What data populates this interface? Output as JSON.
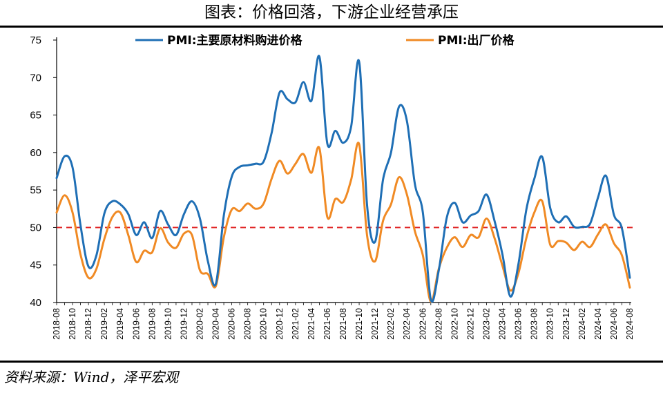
{
  "title": "图表：价格回落，下游企业经营承压",
  "source": "资料来源：Wind，泽平宏观",
  "chart_data": {
    "type": "line",
    "ylim": [
      40,
      75
    ],
    "yticks": [
      40,
      45,
      50,
      55,
      60,
      65,
      70,
      75
    ],
    "grid": false,
    "legend_position": "top",
    "reference_line": {
      "y": 50,
      "color": "#E02020",
      "style": "dashed"
    },
    "x_tick_labels": [
      "2018-08",
      "2018-10",
      "2018-12",
      "2019-02",
      "2019-04",
      "2019-06",
      "2019-08",
      "2019-10",
      "2019-12",
      "2020-02",
      "2020-04",
      "2020-06",
      "2020-08",
      "2020-10",
      "2020-12",
      "2021-02",
      "2021-04",
      "2021-06",
      "2021-08",
      "2021-10",
      "2021-12",
      "2022-02",
      "2022-04",
      "2022-06",
      "2022-08",
      "2022-10",
      "2022-12",
      "2023-02",
      "2023-04",
      "2023-06",
      "2023-08",
      "2023-10",
      "2023-12",
      "2024-02",
      "2024-04",
      "2024-06",
      "2024-08"
    ],
    "x": [
      "2018-08",
      "2018-09",
      "2018-10",
      "2018-11",
      "2018-12",
      "2019-01",
      "2019-02",
      "2019-03",
      "2019-04",
      "2019-05",
      "2019-06",
      "2019-07",
      "2019-08",
      "2019-09",
      "2019-10",
      "2019-11",
      "2019-12",
      "2020-01",
      "2020-02",
      "2020-03",
      "2020-04",
      "2020-05",
      "2020-06",
      "2020-07",
      "2020-08",
      "2020-09",
      "2020-10",
      "2020-11",
      "2020-12",
      "2021-01",
      "2021-02",
      "2021-03",
      "2021-04",
      "2021-05",
      "2021-06",
      "2021-07",
      "2021-08",
      "2021-09",
      "2021-10",
      "2021-11",
      "2021-12",
      "2022-01",
      "2022-02",
      "2022-03",
      "2022-04",
      "2022-05",
      "2022-06",
      "2022-07",
      "2022-08",
      "2022-09",
      "2022-10",
      "2022-11",
      "2022-12",
      "2023-01",
      "2023-02",
      "2023-03",
      "2023-04",
      "2023-05",
      "2023-06",
      "2023-07",
      "2023-08",
      "2023-09",
      "2023-10",
      "2023-11",
      "2023-12",
      "2024-01",
      "2024-02",
      "2024-03",
      "2024-04",
      "2024-05",
      "2024-06",
      "2024-07",
      "2024-08"
    ],
    "series": [
      {
        "name": "PMI:主要原材料购进价格",
        "color": "#1F6FB5",
        "values": [
          56.6,
          59.5,
          58.0,
          50.3,
          44.8,
          46.3,
          51.9,
          53.5,
          53.1,
          51.8,
          49.0,
          50.7,
          48.6,
          52.2,
          50.4,
          49.0,
          51.8,
          53.5,
          51.2,
          45.5,
          42.5,
          51.6,
          56.8,
          58.1,
          58.3,
          58.5,
          58.8,
          62.6,
          68.0,
          67.1,
          66.7,
          69.4,
          66.9,
          72.8,
          61.2,
          62.9,
          61.3,
          63.5,
          72.1,
          52.9,
          48.1,
          56.4,
          60.0,
          66.1,
          64.2,
          55.8,
          52.0,
          40.4,
          44.3,
          51.3,
          53.3,
          50.7,
          51.6,
          52.2,
          54.4,
          50.9,
          46.4,
          40.8,
          45.1,
          52.4,
          56.5,
          59.4,
          52.6,
          50.7,
          51.5,
          50.1,
          50.1,
          50.5,
          54.0,
          56.9,
          51.7,
          49.9,
          43.3
        ]
      },
      {
        "name": "PMI:出厂价格",
        "color": "#F08A24",
        "values": [
          52.0,
          54.3,
          52.0,
          46.4,
          43.3,
          44.5,
          48.5,
          51.4,
          52.0,
          49.0,
          45.4,
          46.9,
          46.7,
          49.9,
          48.0,
          47.3,
          49.2,
          49.0,
          44.3,
          43.8,
          42.2,
          48.7,
          52.4,
          52.2,
          53.2,
          52.5,
          53.2,
          56.5,
          58.9,
          57.2,
          58.5,
          59.8,
          57.3,
          60.6,
          51.4,
          53.8,
          53.4,
          56.4,
          61.1,
          48.9,
          45.5,
          50.9,
          53.1,
          56.7,
          54.4,
          49.5,
          46.3,
          40.1,
          44.5,
          47.3,
          48.7,
          47.4,
          49.0,
          48.7,
          51.2,
          48.6,
          44.9,
          41.6,
          43.9,
          48.6,
          52.0,
          53.5,
          47.7,
          48.2,
          48.0,
          47.0,
          48.1,
          47.4,
          49.1,
          50.4,
          47.9,
          46.3,
          42.0
        ]
      }
    ]
  }
}
